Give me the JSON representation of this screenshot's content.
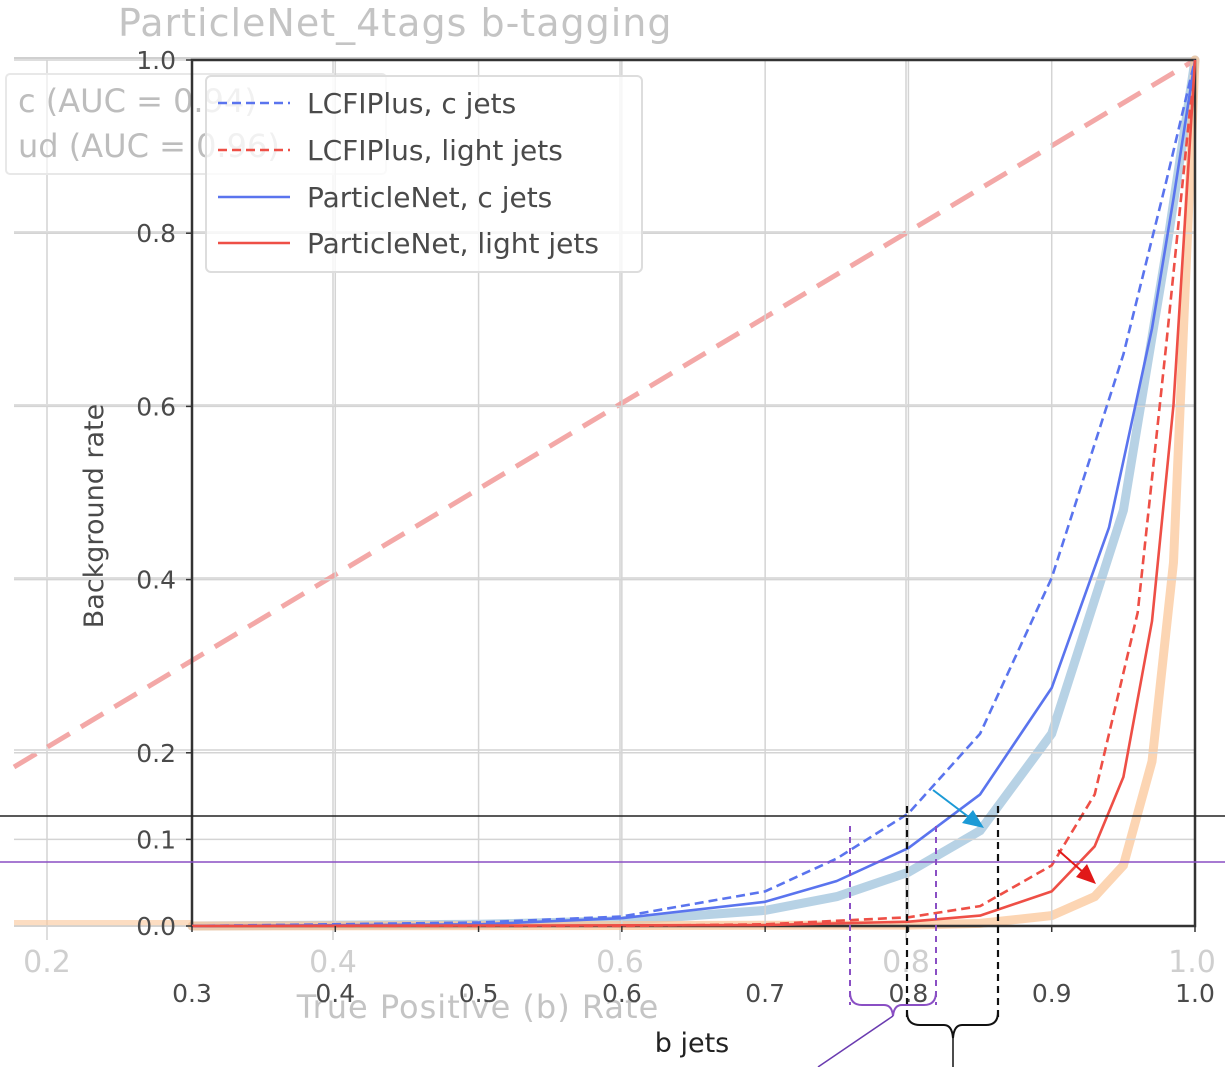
{
  "background_plot": {
    "title": "ParticleNet_4tags b-tagging",
    "x_ticks": [
      "0.2",
      "0.4",
      "0.6",
      "0.8",
      "1.0"
    ],
    "xlabel": "True Positive (b) Rate",
    "legend": [
      "c (AUC = 0.94)",
      "ud (AUC = 0.96)"
    ],
    "colors": {
      "diagonal": "#f29a98",
      "c_shadow": "#9fc3dc",
      "ud_shadow": "#fbc79a"
    }
  },
  "chart_data": {
    "type": "line",
    "title": "",
    "xlabel": "b jets",
    "ylabel": "Background rate",
    "xlim": [
      0.3,
      1.0
    ],
    "ylim": [
      0.0,
      1.0
    ],
    "x_ticks": [
      "0.3",
      "0.4",
      "0.5",
      "0.6",
      "0.7",
      "0.8",
      "0.9",
      "1.0"
    ],
    "y_ticks": [
      "0.0",
      "0.1",
      "0.2",
      "0.4",
      "0.6",
      "0.8",
      "1.0"
    ],
    "y_tick_values": [
      0.0,
      0.1,
      0.2,
      0.4,
      0.6,
      0.8,
      1.0
    ],
    "grid": true,
    "legend_position": "top-left",
    "series": [
      {
        "name": "LCFIPlus, c jets",
        "color": "#5a74ee",
        "style": "dashed",
        "x": [
          0.3,
          0.5,
          0.6,
          0.7,
          0.75,
          0.8,
          0.85,
          0.9,
          0.95,
          0.98,
          1.0
        ],
        "y": [
          0.0,
          0.004,
          0.011,
          0.04,
          0.078,
          0.13,
          0.222,
          0.402,
          0.66,
          0.86,
          1.0
        ]
      },
      {
        "name": "LCFIPlus, light jets",
        "color": "#ee4f46",
        "style": "dashed",
        "x": [
          0.3,
          0.6,
          0.7,
          0.8,
          0.85,
          0.9,
          0.93,
          0.96,
          0.98,
          1.0
        ],
        "y": [
          0.0,
          0.0,
          0.002,
          0.01,
          0.023,
          0.07,
          0.152,
          0.362,
          0.672,
          1.0
        ]
      },
      {
        "name": "ParticleNet, c jets",
        "color": "#5a74ee",
        "style": "solid",
        "x": [
          0.3,
          0.5,
          0.6,
          0.7,
          0.75,
          0.8,
          0.85,
          0.9,
          0.94,
          0.97,
          0.985,
          1.0
        ],
        "y": [
          0.0,
          0.002,
          0.009,
          0.028,
          0.052,
          0.09,
          0.152,
          0.275,
          0.46,
          0.69,
          0.84,
          1.0
        ]
      },
      {
        "name": "ParticleNet, light jets",
        "color": "#ee4f46",
        "style": "solid",
        "x": [
          0.3,
          0.7,
          0.8,
          0.85,
          0.9,
          0.93,
          0.95,
          0.97,
          0.985,
          1.0
        ],
        "y": [
          0.0,
          0.001,
          0.005,
          0.012,
          0.04,
          0.092,
          0.172,
          0.352,
          0.602,
          1.0
        ]
      }
    ],
    "background_series": [
      {
        "label": "c (AUC = 0.94)",
        "x": [
          0.3,
          0.5,
          0.6,
          0.7,
          0.75,
          0.8,
          0.85,
          0.9,
          0.95,
          0.98,
          1.0
        ],
        "y": [
          0.0,
          0.002,
          0.006,
          0.018,
          0.034,
          0.062,
          0.11,
          0.222,
          0.48,
          0.78,
          1.0
        ]
      },
      {
        "label": "ud (AUC = 0.96)",
        "x": [
          0.3,
          0.8,
          0.85,
          0.9,
          0.93,
          0.95,
          0.97,
          0.985,
          1.0
        ],
        "y": [
          0.0,
          0.001,
          0.003,
          0.012,
          0.034,
          0.07,
          0.19,
          0.42,
          1.0
        ]
      }
    ]
  }
}
